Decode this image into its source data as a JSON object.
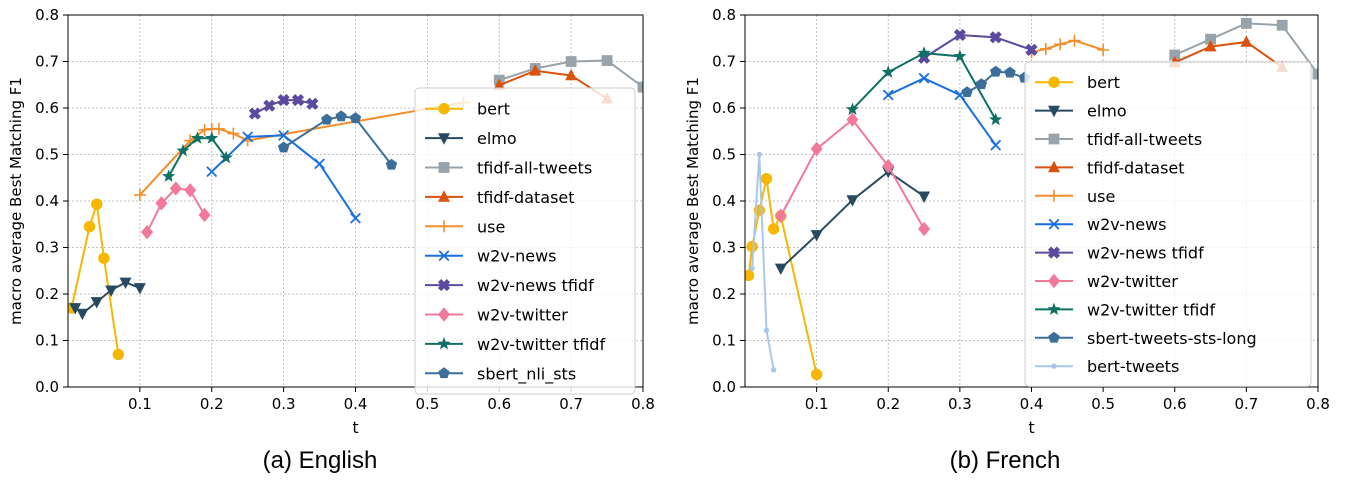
{
  "captions": [
    "(a) English",
    "(b) French"
  ],
  "chart_data": [
    {
      "type": "line",
      "title": "",
      "xlabel": "t",
      "ylabel": "macro average Best Matching F1",
      "xlim": [
        0.0,
        0.8
      ],
      "ylim": [
        0.0,
        0.8
      ],
      "xticks": [
        0.1,
        0.2,
        0.3,
        0.4,
        0.5,
        0.6,
        0.7,
        0.8
      ],
      "yticks": [
        0.0,
        0.1,
        0.2,
        0.3,
        0.4,
        0.5,
        0.6,
        0.7,
        0.8
      ],
      "grid": true,
      "legend_position": "right",
      "series": [
        {
          "name": "bert",
          "color": "#f5b700",
          "marker": "circle",
          "x": [
            0.005,
            0.03,
            0.04,
            0.05,
            0.07
          ],
          "y": [
            0.17,
            0.345,
            0.393,
            0.277,
            0.07
          ]
        },
        {
          "name": "elmo",
          "color": "#274a61",
          "marker": "triangle-down",
          "x": [
            0.01,
            0.02,
            0.04,
            0.06,
            0.08,
            0.1
          ],
          "y": [
            0.17,
            0.158,
            0.183,
            0.208,
            0.225,
            0.213
          ]
        },
        {
          "name": "tfidf-all-tweets",
          "color": "#98a3ab",
          "marker": "square",
          "x": [
            0.6,
            0.65,
            0.7,
            0.75,
            0.8
          ],
          "y": [
            0.66,
            0.685,
            0.7,
            0.702,
            0.645
          ]
        },
        {
          "name": "tfidf-dataset",
          "color": "#d9530f",
          "marker": "triangle-up",
          "x": [
            0.6,
            0.65,
            0.7,
            0.75
          ],
          "y": [
            0.649,
            0.68,
            0.67,
            0.62
          ]
        },
        {
          "name": "use",
          "color": "#f28e2b",
          "marker": "plus",
          "x": [
            0.1,
            0.17,
            0.19,
            0.2,
            0.21,
            0.23,
            0.25,
            0.55
          ],
          "y": [
            0.413,
            0.53,
            0.553,
            0.555,
            0.555,
            0.545,
            0.53,
            0.612
          ]
        },
        {
          "name": "w2v-news",
          "color": "#1a6fdf",
          "marker": "x",
          "x": [
            0.2,
            0.25,
            0.3,
            0.35,
            0.4
          ],
          "y": [
            0.463,
            0.538,
            0.541,
            0.48,
            0.363
          ]
        },
        {
          "name": "w2v-news tfidf",
          "color": "#5b4a9e",
          "marker": "plus-thick",
          "x": [
            0.26,
            0.28,
            0.3,
            0.32,
            0.34
          ],
          "y": [
            0.588,
            0.605,
            0.617,
            0.617,
            0.609
          ]
        },
        {
          "name": "w2v-twitter",
          "color": "#f2799a",
          "marker": "diamond",
          "x": [
            0.11,
            0.13,
            0.15,
            0.17,
            0.19
          ],
          "y": [
            0.333,
            0.395,
            0.427,
            0.423,
            0.37
          ]
        },
        {
          "name": "w2v-twitter tfidf",
          "color": "#0f7064",
          "marker": "star",
          "x": [
            0.14,
            0.16,
            0.18,
            0.2,
            0.22
          ],
          "y": [
            0.453,
            0.508,
            0.535,
            0.535,
            0.493
          ]
        },
        {
          "name": "sbert_nli_sts",
          "color": "#3d6e9a",
          "marker": "pentagon",
          "x": [
            0.3,
            0.36,
            0.38,
            0.4,
            0.45
          ],
          "y": [
            0.515,
            0.575,
            0.582,
            0.578,
            0.478
          ]
        }
      ]
    },
    {
      "type": "line",
      "title": "",
      "xlabel": "t",
      "ylabel": "macro average Best Matching F1",
      "xlim": [
        0.0,
        0.8
      ],
      "ylim": [
        0.0,
        0.8
      ],
      "xticks": [
        0.1,
        0.2,
        0.3,
        0.4,
        0.5,
        0.6,
        0.7,
        0.8
      ],
      "yticks": [
        0.0,
        0.1,
        0.2,
        0.3,
        0.4,
        0.5,
        0.6,
        0.7,
        0.8
      ],
      "grid": true,
      "legend_position": "right",
      "series": [
        {
          "name": "bert",
          "color": "#f5b700",
          "marker": "circle",
          "x": [
            0.005,
            0.01,
            0.02,
            0.03,
            0.04,
            0.05,
            0.1
          ],
          "y": [
            0.24,
            0.302,
            0.38,
            0.448,
            0.34,
            0.368,
            0.027
          ]
        },
        {
          "name": "elmo",
          "color": "#274a61",
          "marker": "triangle-down",
          "x": [
            0.05,
            0.1,
            0.15,
            0.2,
            0.25
          ],
          "y": [
            0.255,
            0.327,
            0.402,
            0.463,
            0.41
          ]
        },
        {
          "name": "tfidf-all-tweets",
          "color": "#98a3ab",
          "marker": "square",
          "x": [
            0.6,
            0.65,
            0.7,
            0.75,
            0.8
          ],
          "y": [
            0.714,
            0.748,
            0.782,
            0.778,
            0.673
          ]
        },
        {
          "name": "tfidf-dataset",
          "color": "#d9530f",
          "marker": "triangle-up",
          "x": [
            0.6,
            0.65,
            0.7,
            0.75
          ],
          "y": [
            0.698,
            0.732,
            0.742,
            0.688
          ]
        },
        {
          "name": "use",
          "color": "#f28e2b",
          "marker": "plus",
          "x": [
            0.4,
            0.42,
            0.44,
            0.46,
            0.5
          ],
          "y": [
            0.72,
            0.727,
            0.737,
            0.745,
            0.725
          ]
        },
        {
          "name": "w2v-news",
          "color": "#1a6fdf",
          "marker": "x",
          "x": [
            0.2,
            0.25,
            0.3,
            0.35
          ],
          "y": [
            0.628,
            0.664,
            0.628,
            0.52
          ]
        },
        {
          "name": "w2v-news tfidf",
          "color": "#5b4a9e",
          "marker": "plus-thick",
          "x": [
            0.25,
            0.3,
            0.35,
            0.4
          ],
          "y": [
            0.708,
            0.757,
            0.752,
            0.725
          ]
        },
        {
          "name": "w2v-twitter",
          "color": "#f2799a",
          "marker": "diamond",
          "x": [
            0.05,
            0.1,
            0.15,
            0.2,
            0.25
          ],
          "y": [
            0.368,
            0.512,
            0.575,
            0.475,
            0.34
          ]
        },
        {
          "name": "w2v-twitter tfidf",
          "color": "#0f7064",
          "marker": "star",
          "x": [
            0.15,
            0.2,
            0.25,
            0.3,
            0.35
          ],
          "y": [
            0.597,
            0.677,
            0.718,
            0.711,
            0.575
          ]
        },
        {
          "name": "sbert-tweets-sts-long",
          "color": "#3d6e9a",
          "marker": "pentagon",
          "x": [
            0.31,
            0.33,
            0.35,
            0.37,
            0.39
          ],
          "y": [
            0.634,
            0.651,
            0.678,
            0.676,
            0.665
          ]
        },
        {
          "name": "bert-tweets",
          "color": "#a9c7ec",
          "marker": "small-dot",
          "x": [
            0.01,
            0.02,
            0.03,
            0.04
          ],
          "y": [
            0.255,
            0.5,
            0.122,
            0.037
          ]
        }
      ]
    }
  ]
}
